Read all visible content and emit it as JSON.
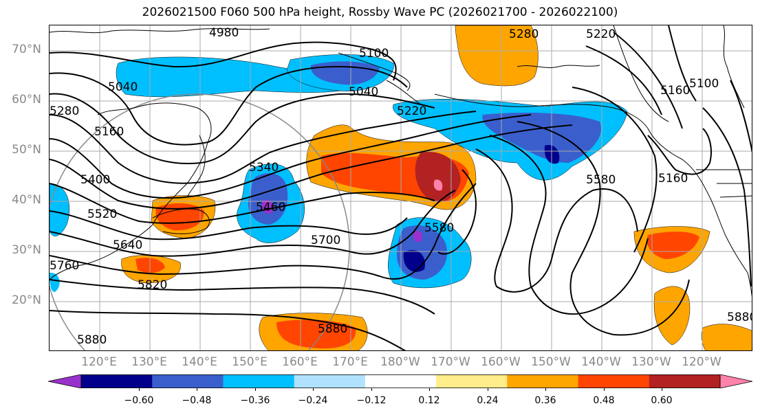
{
  "title": "2026021500 F060 500 hPa height, Rossby Wave PC (2026021700 - 2026022100)",
  "lat_labels": [
    "70°N",
    "60°N",
    "50°N",
    "40°N",
    "30°N",
    "20°N"
  ],
  "lon_labels": [
    "120°E",
    "130°E",
    "140°E",
    "150°E",
    "160°E",
    "170°E",
    "180°W",
    "170°W",
    "160°W",
    "150°W",
    "140°W",
    "130°W",
    "120°W"
  ],
  "contour_labels": [
    "4980",
    "5100",
    "5040",
    "5220",
    "5280",
    "5220",
    "5160",
    "5100",
    "5040",
    "5280",
    "5160",
    "5400",
    "5520",
    "5640",
    "5760",
    "5820",
    "5880",
    "5340",
    "5460",
    "5700",
    "5580",
    "5580",
    "5160",
    "5880",
    "5880"
  ],
  "colorbar": {
    "ticks": [
      "−0.60",
      "−0.48",
      "−0.36",
      "−0.24",
      "−0.12",
      "0.12",
      "0.24",
      "0.36",
      "0.48",
      "0.60"
    ],
    "colors": [
      "#9932cc",
      "#00008b",
      "#3a5fcd",
      "#00bfff",
      "#b0e2ff",
      "#ffffff",
      "#ffec8b",
      "#ffa500",
      "#ff4500",
      "#b22222",
      "#ff82ab"
    ]
  }
}
